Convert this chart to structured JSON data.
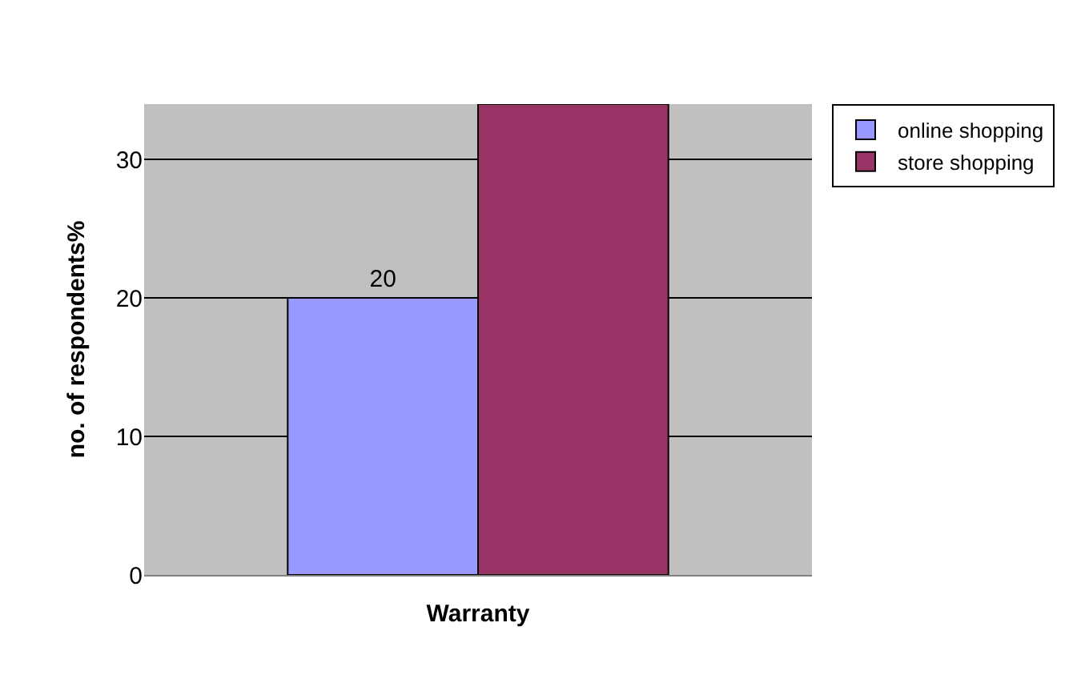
{
  "chart_data": {
    "type": "bar",
    "xlabel": "Warranty",
    "ylabel": "no. of respondents%",
    "categories": [
      null
    ],
    "series": [
      {
        "name": "online shopping",
        "color": "#9999ff",
        "values": [
          20
        ],
        "value_labels": [
          "20"
        ]
      },
      {
        "name": "store shopping",
        "color": "#993366",
        "values": [
          34
        ],
        "value_labels": [
          null
        ]
      }
    ],
    "ylim": [
      0,
      34
    ],
    "yticks": [
      0,
      10,
      20,
      30
    ],
    "grid": "y",
    "legend": "right"
  }
}
